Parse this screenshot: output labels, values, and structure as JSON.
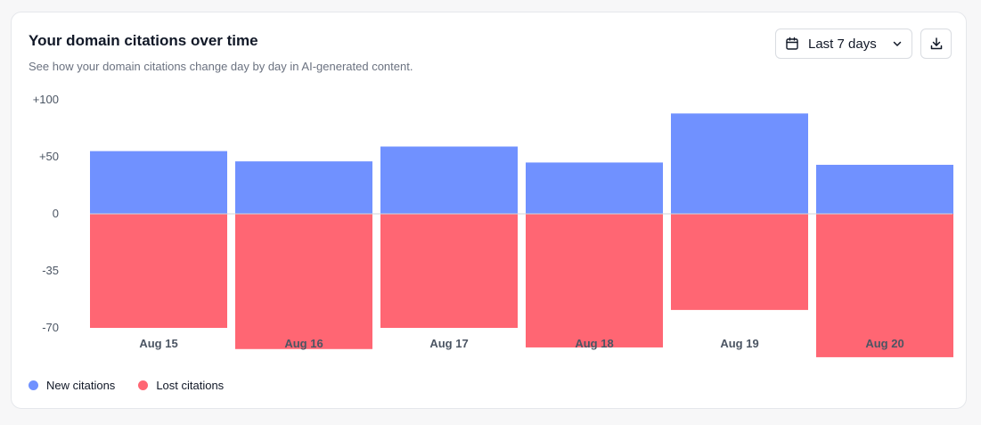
{
  "header": {
    "title": "Your domain citations over time",
    "subtitle": "See how your domain citations change day by day in AI-generated content."
  },
  "controls": {
    "range_label": "Last 7 days",
    "range_icon": "calendar-icon",
    "dropdown_icon": "chevron-down-icon",
    "download_icon": "download-icon"
  },
  "colors": {
    "new": "#7091ff",
    "lost": "#ff6673"
  },
  "legend": {
    "new_label": "New citations",
    "lost_label": "Lost citations"
  },
  "chart_data": {
    "type": "bar",
    "stacked": true,
    "title": "Your domain citations over time",
    "xlabel": "",
    "ylabel": "",
    "categories": [
      "Aug 15",
      "Aug 16",
      "Aug 17",
      "Aug 18",
      "Aug 19",
      "Aug 20"
    ],
    "series": [
      {
        "name": "New citations",
        "values": [
          55,
          46,
          59,
          45,
          88,
          43
        ]
      },
      {
        "name": "Lost citations",
        "values": [
          -70,
          -83,
          -70,
          -82,
          -59,
          -88
        ]
      }
    ],
    "y_ticks": [
      {
        "value": 100,
        "label": "+100"
      },
      {
        "value": 50,
        "label": "+50"
      },
      {
        "value": 0,
        "label": "0"
      },
      {
        "value": -35,
        "label": "-35"
      },
      {
        "value": -70,
        "label": "-70"
      }
    ],
    "grid": false,
    "legend_position": "bottom-left"
  }
}
